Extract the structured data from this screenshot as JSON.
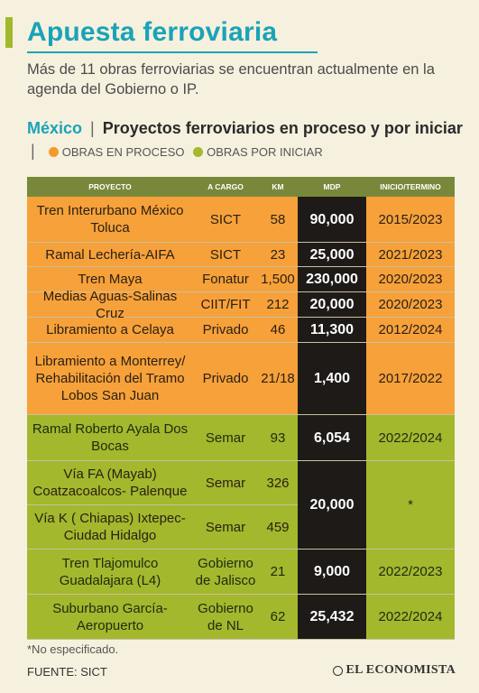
{
  "title": "Apuesta ferroviaria",
  "subtitle": "Más de 11 obras ferroviarias se encuentran actualmente en la agenda del Gobierno o IP.",
  "section": {
    "country": "México",
    "separator": "|",
    "heading": "Proyectos ferroviarios en proceso y por iniciar",
    "legend_separator": "|",
    "legend": [
      {
        "label": "OBRAS EN PROCESO",
        "color": "#f39a2c"
      },
      {
        "label": "OBRAS POR INICIAR",
        "color": "#a3b82d"
      }
    ]
  },
  "table": {
    "headers": [
      "PROYECTO",
      "A CARGO",
      "KM",
      "MDP",
      "INICIO/TERMINO"
    ],
    "rows": [
      {
        "status": "proceso",
        "proyecto": "Tren Interurbano México Toluca",
        "cargo": "SICT",
        "km": "58",
        "mdp": "90,000",
        "periodo": "2015/2023"
      },
      {
        "status": "proceso",
        "proyecto": "Ramal Lechería-AIFA",
        "cargo": "SICT",
        "km": "23",
        "mdp": "25,000",
        "periodo": "2021/2023"
      },
      {
        "status": "proceso",
        "proyecto": "Tren Maya",
        "cargo": "Fonatur",
        "km": "1,500",
        "mdp": "230,000",
        "periodo": "2020/2023"
      },
      {
        "status": "proceso",
        "proyecto": "Medias Aguas-Salinas Cruz",
        "cargo": "CIIT/FIT",
        "km": "212",
        "mdp": "20,000",
        "periodo": "2020/2023"
      },
      {
        "status": "proceso",
        "proyecto": "Libramiento a Celaya",
        "cargo": "Privado",
        "km": "46",
        "mdp": "11,300",
        "periodo": "2012/2024"
      },
      {
        "status": "proceso",
        "proyecto": "Libramiento a Monterrey/ Rehabilitación del Tramo Lobos San Juan",
        "cargo": "Privado",
        "km": "21/18",
        "mdp": "1,400",
        "periodo": "2017/2022"
      },
      {
        "status": "iniciar",
        "proyecto": "Ramal Roberto Ayala Dos Bocas",
        "cargo": "Semar",
        "km": "93",
        "mdp": "6,054",
        "periodo": "2022/2024"
      }
    ],
    "merged": {
      "status": "iniciar",
      "sub_rows": [
        {
          "proyecto": "Vía FA (Mayab) Coatzacoalcos- Palenque",
          "cargo": "Semar",
          "km": "326"
        },
        {
          "proyecto": "Vía K ( Chiapas) Ixtepec- Ciudad Hidalgo",
          "cargo": "Semar",
          "km": "459"
        }
      ],
      "mdp": "20,000",
      "periodo": "*"
    },
    "rows_after": [
      {
        "status": "iniciar",
        "proyecto": "Tren Tlajomulco Guadalajara (L4)",
        "cargo": "Gobierno de Jalisco",
        "km": "21",
        "mdp": "9,000",
        "periodo": "2022/2023"
      },
      {
        "status": "iniciar",
        "proyecto": "Suburbano García- Aeropuerto",
        "cargo": "Gobierno de NL",
        "km": "62",
        "mdp": "25,432",
        "periodo": "2022/2024"
      }
    ]
  },
  "footnote": "*No especificado.",
  "source": "FUENTE: SICT",
  "brand": "EL ECONOMISTA"
}
